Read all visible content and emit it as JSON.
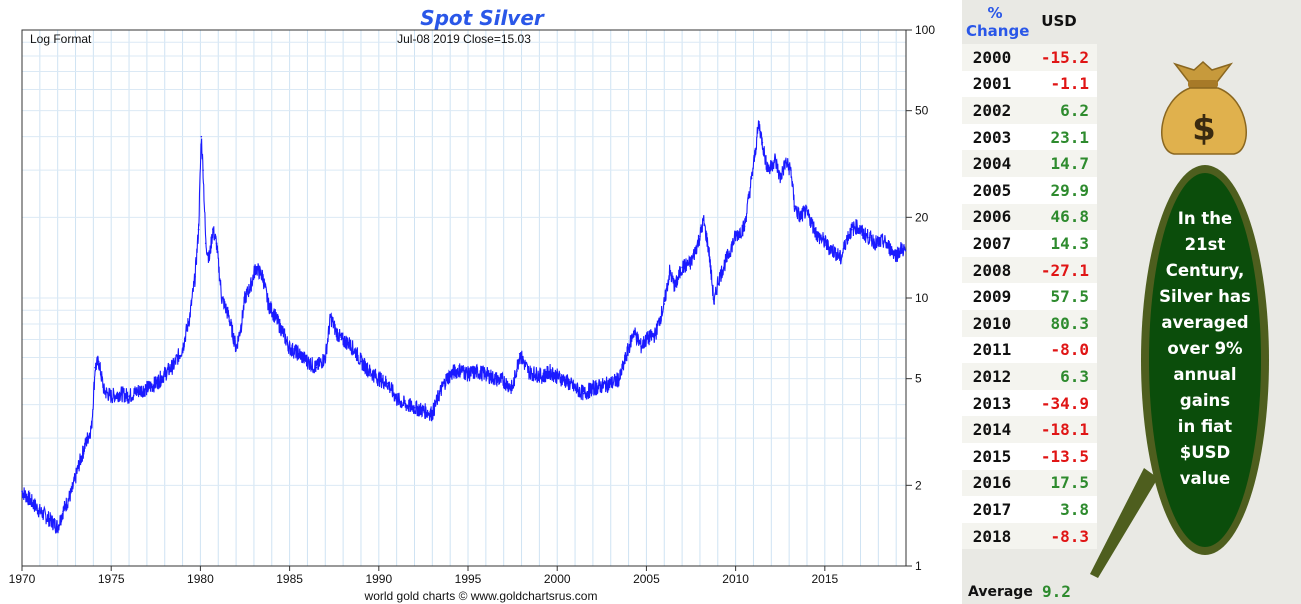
{
  "chart_data": {
    "type": "line",
    "title": "Spot Silver",
    "subtitle_left": "Log Format",
    "subtitle_center": "Jul-08  2019   Close=15.03",
    "footer": "world gold charts © www.goldchartsrus.com",
    "y_scale": "log",
    "ylim": [
      1,
      100
    ],
    "y_ticks": [
      1,
      2,
      5,
      10,
      20,
      50,
      100
    ],
    "x_ticks": [
      1970,
      1975,
      1980,
      1985,
      1990,
      1995,
      2000,
      2005,
      2010,
      2015
    ],
    "xlim": [
      1970,
      2019.55
    ],
    "series": [
      {
        "name": "Spot Silver",
        "color": "#1a1aff",
        "x": [
          1970.0,
          1970.5,
          1971.0,
          1971.5,
          1972.0,
          1972.3,
          1972.8,
          1973.2,
          1973.6,
          1973.9,
          1974.1,
          1974.3,
          1974.6,
          1975.0,
          1975.5,
          1976.0,
          1976.5,
          1977.0,
          1977.5,
          1978.0,
          1978.5,
          1979.0,
          1979.4,
          1979.7,
          1979.9,
          1980.05,
          1980.15,
          1980.3,
          1980.5,
          1980.7,
          1980.9,
          1981.2,
          1981.6,
          1982.0,
          1982.3,
          1982.5,
          1982.8,
          1983.1,
          1983.5,
          1983.8,
          1984.2,
          1984.6,
          1985.0,
          1985.5,
          1986.0,
          1986.5,
          1987.0,
          1987.3,
          1987.6,
          1987.9,
          1988.3,
          1988.7,
          1989.0,
          1989.5,
          1990.0,
          1990.5,
          1991.0,
          1991.5,
          1992.0,
          1992.5,
          1993.0,
          1993.4,
          1993.8,
          1994.2,
          1994.6,
          1995.0,
          1995.5,
          1996.0,
          1996.5,
          1997.0,
          1997.5,
          1997.9,
          1998.1,
          1998.4,
          1998.8,
          1999.2,
          1999.6,
          2000.0,
          2000.5,
          2001.0,
          2001.5,
          2002.0,
          2002.5,
          2003.0,
          2003.5,
          2004.0,
          2004.3,
          2004.7,
          2005.0,
          2005.5,
          2006.0,
          2006.3,
          2006.6,
          2007.0,
          2007.5,
          2008.0,
          2008.2,
          2008.5,
          2008.8,
          2009.0,
          2009.5,
          2010.0,
          2010.5,
          2010.9,
          2011.1,
          2011.3,
          2011.5,
          2011.7,
          2011.9,
          2012.2,
          2012.5,
          2012.8,
          2013.1,
          2013.3,
          2013.6,
          2013.9,
          2014.2,
          2014.6,
          2014.9,
          2015.2,
          2015.6,
          2015.9,
          2016.2,
          2016.5,
          2016.8,
          2017.1,
          2017.5,
          2017.9,
          2018.3,
          2018.7,
          2019.0,
          2019.3,
          2019.52
        ],
        "values": [
          1.9,
          1.75,
          1.6,
          1.5,
          1.4,
          1.6,
          1.9,
          2.4,
          2.9,
          3.3,
          5.5,
          5.8,
          4.5,
          4.3,
          4.4,
          4.3,
          4.5,
          4.6,
          4.8,
          5.2,
          5.6,
          6.5,
          8.5,
          12.0,
          18.0,
          40.0,
          30.0,
          16.0,
          14.0,
          18.0,
          16.0,
          10.0,
          8.5,
          6.5,
          8.0,
          10.0,
          11.0,
          13.0,
          12.0,
          9.5,
          8.5,
          7.5,
          6.5,
          6.2,
          5.8,
          5.5,
          6.0,
          8.5,
          7.5,
          7.0,
          6.8,
          6.3,
          5.8,
          5.3,
          5.0,
          4.8,
          4.2,
          4.0,
          3.9,
          3.8,
          3.7,
          4.4,
          5.0,
          5.3,
          5.4,
          5.2,
          5.3,
          5.2,
          5.0,
          4.9,
          4.6,
          6.2,
          5.8,
          5.3,
          5.2,
          5.1,
          5.3,
          5.1,
          4.9,
          4.6,
          4.4,
          4.6,
          4.7,
          4.8,
          5.0,
          6.5,
          7.5,
          6.6,
          7.0,
          7.3,
          9.5,
          12.5,
          11.0,
          13.0,
          13.5,
          17.0,
          19.5,
          15.0,
          9.5,
          11.5,
          14.0,
          17.0,
          18.5,
          28.0,
          35.0,
          45.0,
          38.0,
          32.0,
          30.0,
          33.0,
          28.0,
          32.0,
          30.0,
          22.0,
          20.0,
          21.0,
          19.5,
          17.0,
          16.5,
          15.5,
          14.8,
          14.0,
          16.5,
          18.0,
          18.5,
          17.5,
          16.8,
          16.0,
          16.3,
          15.2,
          14.5,
          15.3,
          15.03
        ]
      }
    ]
  },
  "table": {
    "header_pct": "%",
    "header_change": "Change",
    "header_usd": "USD",
    "rows": [
      {
        "year": "2000",
        "value": "-15.2",
        "sign": "neg"
      },
      {
        "year": "2001",
        "value": "-1.1",
        "sign": "neg"
      },
      {
        "year": "2002",
        "value": "6.2",
        "sign": "pos"
      },
      {
        "year": "2003",
        "value": "23.1",
        "sign": "pos"
      },
      {
        "year": "2004",
        "value": "14.7",
        "sign": "pos"
      },
      {
        "year": "2005",
        "value": "29.9",
        "sign": "pos"
      },
      {
        "year": "2006",
        "value": "46.8",
        "sign": "pos"
      },
      {
        "year": "2007",
        "value": "14.3",
        "sign": "pos"
      },
      {
        "year": "2008",
        "value": "-27.1",
        "sign": "neg"
      },
      {
        "year": "2009",
        "value": "57.5",
        "sign": "pos"
      },
      {
        "year": "2010",
        "value": "80.3",
        "sign": "pos"
      },
      {
        "year": "2011",
        "value": "-8.0",
        "sign": "neg"
      },
      {
        "year": "2012",
        "value": "6.3",
        "sign": "pos"
      },
      {
        "year": "2013",
        "value": "-34.9",
        "sign": "neg"
      },
      {
        "year": "2014",
        "value": "-18.1",
        "sign": "neg"
      },
      {
        "year": "2015",
        "value": "-13.5",
        "sign": "neg"
      },
      {
        "year": "2016",
        "value": "17.5",
        "sign": "pos"
      },
      {
        "year": "2017",
        "value": "3.8",
        "sign": "pos"
      },
      {
        "year": "2018",
        "value": "-8.3",
        "sign": "neg"
      }
    ],
    "average_label": "Average",
    "average_value": "9.2"
  },
  "callout": {
    "lines": [
      "In the",
      "21st",
      "Century,",
      "Silver has",
      "averaged",
      "over 9%",
      "annual",
      "gains",
      "in fiat",
      "$USD",
      "value"
    ],
    "icon": "money-bag-icon",
    "icon_symbol": "$"
  },
  "colors": {
    "series": "#1a1aff",
    "title": "#2a57e8",
    "positive": "#2e8b2e",
    "negative": "#e01515",
    "bubble_fill": "#0b4d0b",
    "bubble_border": "#4e5e1e"
  }
}
